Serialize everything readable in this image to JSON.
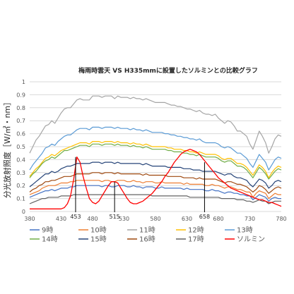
{
  "chart_data": {
    "type": "line",
    "title": "梅雨時雲天 VS H335mmに設置したソルミンとの比較グラフ",
    "ylabel": "分光放射照度［W/㎡・nm］",
    "xlabel": "",
    "xlim": [
      380,
      780
    ],
    "ylim": [
      0,
      1
    ],
    "x_ticks": [
      380,
      430,
      480,
      530,
      580,
      630,
      680,
      730,
      780
    ],
    "y_ticks": [
      0,
      0.1,
      0.2,
      0.3,
      0.4,
      0.5,
      0.6,
      0.7,
      0.8,
      0.9,
      1
    ],
    "x_tick_labels": [
      "380",
      "430",
      "480",
      "530",
      "580",
      "630",
      "680",
      "730",
      "780"
    ],
    "y_tick_labels": [
      "0",
      "0.1",
      "0.2",
      "0.3",
      "0.4",
      "0.5",
      "0.6",
      "0.7",
      "0.8",
      "0.9",
      "1"
    ],
    "grid": "horizontal",
    "legend_position": "bottom",
    "annotations": [
      {
        "x": 453,
        "label": "453"
      },
      {
        "x": 515,
        "label": "515"
      },
      {
        "x": 658,
        "label": "658"
      }
    ],
    "x": [
      380,
      385,
      390,
      395,
      400,
      405,
      410,
      415,
      420,
      425,
      430,
      435,
      440,
      445,
      450,
      455,
      460,
      465,
      470,
      475,
      480,
      485,
      490,
      495,
      500,
      505,
      510,
      515,
      520,
      525,
      530,
      535,
      540,
      545,
      550,
      555,
      560,
      565,
      570,
      575,
      580,
      585,
      590,
      595,
      600,
      605,
      610,
      615,
      620,
      625,
      630,
      635,
      640,
      645,
      650,
      655,
      660,
      665,
      670,
      675,
      680,
      685,
      690,
      695,
      700,
      705,
      710,
      715,
      720,
      725,
      730,
      735,
      740,
      745,
      750,
      755,
      760,
      765,
      770,
      775,
      780
    ],
    "series": [
      {
        "name": "9時",
        "color": "#4472c4",
        "values": [
          0.11,
          0.12,
          0.13,
          0.14,
          0.15,
          0.16,
          0.16,
          0.17,
          0.16,
          0.17,
          0.18,
          0.18,
          0.18,
          0.19,
          0.19,
          0.2,
          0.2,
          0.2,
          0.2,
          0.2,
          0.2,
          0.2,
          0.2,
          0.19,
          0.2,
          0.2,
          0.19,
          0.19,
          0.2,
          0.2,
          0.2,
          0.19,
          0.19,
          0.2,
          0.19,
          0.19,
          0.18,
          0.19,
          0.19,
          0.19,
          0.18,
          0.18,
          0.19,
          0.18,
          0.18,
          0.18,
          0.18,
          0.18,
          0.18,
          0.17,
          0.18,
          0.17,
          0.17,
          0.17,
          0.17,
          0.17,
          0.16,
          0.16,
          0.17,
          0.16,
          0.16,
          0.15,
          0.14,
          0.15,
          0.15,
          0.14,
          0.14,
          0.13,
          0.13,
          0.12,
          0.12,
          0.09,
          0.11,
          0.13,
          0.12,
          0.11,
          0.08,
          0.1,
          0.11,
          0.1,
          0.1
        ]
      },
      {
        "name": "10時",
        "color": "#ed7d31",
        "values": [
          0.13,
          0.14,
          0.15,
          0.16,
          0.18,
          0.19,
          0.2,
          0.2,
          0.2,
          0.21,
          0.22,
          0.22,
          0.22,
          0.23,
          0.23,
          0.24,
          0.24,
          0.24,
          0.24,
          0.24,
          0.24,
          0.24,
          0.24,
          0.23,
          0.24,
          0.24,
          0.23,
          0.23,
          0.24,
          0.24,
          0.24,
          0.23,
          0.23,
          0.24,
          0.23,
          0.23,
          0.22,
          0.23,
          0.23,
          0.23,
          0.22,
          0.22,
          0.23,
          0.22,
          0.22,
          0.22,
          0.22,
          0.22,
          0.22,
          0.21,
          0.22,
          0.21,
          0.21,
          0.21,
          0.21,
          0.21,
          0.2,
          0.2,
          0.21,
          0.2,
          0.2,
          0.19,
          0.18,
          0.19,
          0.19,
          0.18,
          0.17,
          0.17,
          0.16,
          0.15,
          0.15,
          0.11,
          0.14,
          0.16,
          0.15,
          0.14,
          0.1,
          0.12,
          0.14,
          0.13,
          0.13
        ]
      },
      {
        "name": "11時",
        "color": "#a5a5a5",
        "values": [
          0.45,
          0.5,
          0.55,
          0.58,
          0.62,
          0.66,
          0.67,
          0.7,
          0.68,
          0.72,
          0.76,
          0.79,
          0.8,
          0.8,
          0.83,
          0.86,
          0.87,
          0.86,
          0.86,
          0.86,
          0.89,
          0.89,
          0.89,
          0.88,
          0.89,
          0.89,
          0.89,
          0.87,
          0.89,
          0.88,
          0.88,
          0.88,
          0.87,
          0.88,
          0.87,
          0.87,
          0.86,
          0.87,
          0.86,
          0.85,
          0.84,
          0.84,
          0.84,
          0.84,
          0.83,
          0.82,
          0.82,
          0.81,
          0.81,
          0.8,
          0.79,
          0.79,
          0.78,
          0.77,
          0.78,
          0.76,
          0.75,
          0.75,
          0.74,
          0.75,
          0.72,
          0.7,
          0.68,
          0.7,
          0.69,
          0.66,
          0.62,
          0.62,
          0.6,
          0.58,
          0.52,
          0.48,
          0.55,
          0.62,
          0.58,
          0.53,
          0.45,
          0.5,
          0.56,
          0.59,
          0.58
        ]
      },
      {
        "name": "12時",
        "color": "#ffc000",
        "values": [
          0.27,
          0.3,
          0.33,
          0.35,
          0.38,
          0.41,
          0.42,
          0.44,
          0.43,
          0.45,
          0.47,
          0.48,
          0.49,
          0.5,
          0.51,
          0.52,
          0.53,
          0.53,
          0.53,
          0.52,
          0.54,
          0.54,
          0.54,
          0.53,
          0.54,
          0.54,
          0.54,
          0.53,
          0.54,
          0.53,
          0.53,
          0.53,
          0.52,
          0.53,
          0.52,
          0.52,
          0.51,
          0.52,
          0.51,
          0.5,
          0.5,
          0.5,
          0.5,
          0.5,
          0.49,
          0.49,
          0.48,
          0.48,
          0.48,
          0.47,
          0.47,
          0.46,
          0.46,
          0.45,
          0.46,
          0.45,
          0.44,
          0.44,
          0.44,
          0.44,
          0.43,
          0.41,
          0.4,
          0.41,
          0.41,
          0.39,
          0.37,
          0.37,
          0.36,
          0.34,
          0.31,
          0.28,
          0.32,
          0.36,
          0.34,
          0.31,
          0.26,
          0.3,
          0.33,
          0.35,
          0.34
        ]
      },
      {
        "name": "13時",
        "color": "#5b9bd5",
        "values": [
          0.32,
          0.36,
          0.39,
          0.42,
          0.45,
          0.49,
          0.5,
          0.52,
          0.51,
          0.54,
          0.56,
          0.58,
          0.59,
          0.59,
          0.61,
          0.63,
          0.64,
          0.64,
          0.64,
          0.63,
          0.65,
          0.65,
          0.65,
          0.64,
          0.65,
          0.65,
          0.65,
          0.64,
          0.65,
          0.64,
          0.64,
          0.64,
          0.63,
          0.64,
          0.63,
          0.63,
          0.62,
          0.63,
          0.62,
          0.61,
          0.61,
          0.61,
          0.61,
          0.6,
          0.6,
          0.59,
          0.59,
          0.58,
          0.58,
          0.57,
          0.57,
          0.56,
          0.56,
          0.55,
          0.56,
          0.54,
          0.53,
          0.53,
          0.53,
          0.53,
          0.52,
          0.5,
          0.49,
          0.5,
          0.49,
          0.47,
          0.45,
          0.45,
          0.43,
          0.41,
          0.37,
          0.34,
          0.39,
          0.44,
          0.41,
          0.38,
          0.32,
          0.36,
          0.4,
          0.42,
          0.41
        ]
      },
      {
        "name": "14時",
        "color": "#70ad47",
        "values": [
          0.26,
          0.29,
          0.31,
          0.34,
          0.37,
          0.39,
          0.4,
          0.42,
          0.41,
          0.43,
          0.45,
          0.47,
          0.47,
          0.48,
          0.49,
          0.5,
          0.51,
          0.51,
          0.51,
          0.5,
          0.52,
          0.52,
          0.52,
          0.51,
          0.52,
          0.52,
          0.52,
          0.51,
          0.52,
          0.51,
          0.51,
          0.51,
          0.5,
          0.51,
          0.5,
          0.5,
          0.49,
          0.5,
          0.49,
          0.48,
          0.48,
          0.48,
          0.48,
          0.48,
          0.47,
          0.47,
          0.46,
          0.46,
          0.46,
          0.45,
          0.45,
          0.44,
          0.44,
          0.43,
          0.44,
          0.43,
          0.42,
          0.42,
          0.42,
          0.42,
          0.41,
          0.39,
          0.38,
          0.39,
          0.39,
          0.37,
          0.35,
          0.35,
          0.34,
          0.32,
          0.29,
          0.26,
          0.3,
          0.34,
          0.32,
          0.29,
          0.25,
          0.28,
          0.31,
          0.33,
          0.32
        ]
      },
      {
        "name": "15時",
        "color": "#264478",
        "values": [
          0.19,
          0.21,
          0.23,
          0.25,
          0.27,
          0.29,
          0.29,
          0.31,
          0.3,
          0.31,
          0.33,
          0.34,
          0.35,
          0.35,
          0.36,
          0.37,
          0.37,
          0.37,
          0.37,
          0.37,
          0.38,
          0.38,
          0.38,
          0.37,
          0.38,
          0.38,
          0.38,
          0.37,
          0.38,
          0.37,
          0.37,
          0.37,
          0.37,
          0.37,
          0.37,
          0.37,
          0.36,
          0.37,
          0.36,
          0.35,
          0.35,
          0.35,
          0.35,
          0.35,
          0.34,
          0.34,
          0.34,
          0.34,
          0.34,
          0.33,
          0.33,
          0.33,
          0.32,
          0.32,
          0.32,
          0.31,
          0.31,
          0.31,
          0.31,
          0.31,
          0.3,
          0.29,
          0.28,
          0.29,
          0.29,
          0.27,
          0.26,
          0.26,
          0.25,
          0.24,
          0.21,
          0.19,
          0.22,
          0.25,
          0.24,
          0.22,
          0.18,
          0.2,
          0.23,
          0.24,
          0.23
        ]
      },
      {
        "name": "16時",
        "color": "#9e480e",
        "values": [
          0.15,
          0.17,
          0.18,
          0.2,
          0.21,
          0.23,
          0.23,
          0.24,
          0.24,
          0.25,
          0.26,
          0.27,
          0.27,
          0.27,
          0.28,
          0.29,
          0.29,
          0.29,
          0.29,
          0.29,
          0.3,
          0.3,
          0.3,
          0.29,
          0.3,
          0.3,
          0.3,
          0.29,
          0.3,
          0.29,
          0.29,
          0.29,
          0.29,
          0.29,
          0.29,
          0.29,
          0.28,
          0.29,
          0.28,
          0.28,
          0.28,
          0.28,
          0.28,
          0.28,
          0.27,
          0.27,
          0.27,
          0.27,
          0.27,
          0.26,
          0.26,
          0.26,
          0.26,
          0.25,
          0.26,
          0.25,
          0.25,
          0.25,
          0.25,
          0.25,
          0.24,
          0.23,
          0.22,
          0.23,
          0.23,
          0.22,
          0.21,
          0.21,
          0.2,
          0.19,
          0.17,
          0.15,
          0.17,
          0.2,
          0.19,
          0.17,
          0.14,
          0.16,
          0.18,
          0.19,
          0.18
        ]
      },
      {
        "name": "17時",
        "color": "#636363",
        "values": [
          0.06,
          0.07,
          0.08,
          0.09,
          0.1,
          0.1,
          0.11,
          0.11,
          0.11,
          0.11,
          0.12,
          0.12,
          0.12,
          0.12,
          0.13,
          0.13,
          0.13,
          0.13,
          0.13,
          0.13,
          0.13,
          0.13,
          0.13,
          0.13,
          0.13,
          0.13,
          0.13,
          0.13,
          0.13,
          0.13,
          0.13,
          0.13,
          0.13,
          0.13,
          0.13,
          0.13,
          0.13,
          0.13,
          0.13,
          0.12,
          0.12,
          0.12,
          0.12,
          0.12,
          0.12,
          0.12,
          0.12,
          0.12,
          0.12,
          0.12,
          0.12,
          0.11,
          0.11,
          0.11,
          0.11,
          0.11,
          0.11,
          0.11,
          0.11,
          0.11,
          0.11,
          0.1,
          0.1,
          0.1,
          0.1,
          0.1,
          0.09,
          0.09,
          0.09,
          0.08,
          0.08,
          0.07,
          0.08,
          0.09,
          0.08,
          0.08,
          0.06,
          0.07,
          0.08,
          0.08,
          0.08
        ]
      },
      {
        "name": "ソルミン",
        "color": "#ff0000",
        "values": [
          0.02,
          0.02,
          0.02,
          0.02,
          0.02,
          0.02,
          0.02,
          0.02,
          0.02,
          0.02,
          0.02,
          0.03,
          0.06,
          0.12,
          0.25,
          0.42,
          0.38,
          0.27,
          0.18,
          0.1,
          0.07,
          0.06,
          0.08,
          0.12,
          0.16,
          0.2,
          0.23,
          0.23,
          0.22,
          0.18,
          0.14,
          0.1,
          0.07,
          0.06,
          0.06,
          0.07,
          0.08,
          0.1,
          0.12,
          0.14,
          0.17,
          0.2,
          0.23,
          0.27,
          0.3,
          0.34,
          0.38,
          0.41,
          0.44,
          0.46,
          0.47,
          0.48,
          0.47,
          0.46,
          0.44,
          0.41,
          0.38,
          0.35,
          0.32,
          0.29,
          0.26,
          0.24,
          0.22,
          0.2,
          0.18,
          0.17,
          0.16,
          0.15,
          0.14,
          0.13,
          0.12,
          0.11,
          0.1,
          0.09,
          0.09,
          0.08,
          0.07,
          0.07,
          0.06,
          0.05,
          0.04
        ]
      }
    ]
  }
}
